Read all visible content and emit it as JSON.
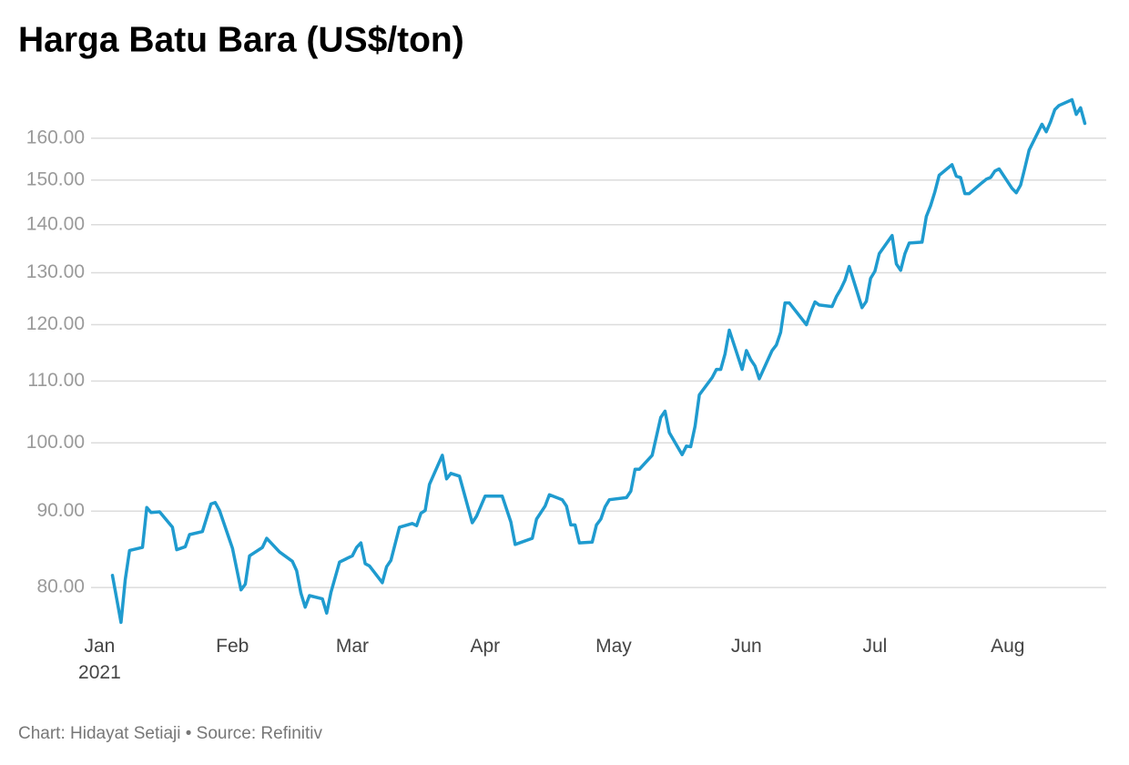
{
  "chart_data": {
    "type": "line",
    "title": "Harga Batu Bara (US$/ton)",
    "footer": "Chart: Hidayat Setiaji • Source: Refinitiv",
    "color": "#1f9bcf",
    "log_y": true,
    "grid": true,
    "x": [
      "2021-01-04",
      "2021-01-06",
      "2021-01-07",
      "2021-01-08",
      "2021-01-11",
      "2021-01-12",
      "2021-01-13",
      "2021-01-15",
      "2021-01-18",
      "2021-01-19",
      "2021-01-21",
      "2021-01-22",
      "2021-01-25",
      "2021-01-27",
      "2021-01-28",
      "2021-01-29",
      "2021-02-01",
      "2021-02-03",
      "2021-02-04",
      "2021-02-05",
      "2021-02-08",
      "2021-02-09",
      "2021-02-10",
      "2021-02-12",
      "2021-02-15",
      "2021-02-16",
      "2021-02-17",
      "2021-02-18",
      "2021-02-19",
      "2021-02-22",
      "2021-02-23",
      "2021-02-24",
      "2021-02-26",
      "2021-03-01",
      "2021-03-02",
      "2021-03-03",
      "2021-03-04",
      "2021-03-05",
      "2021-03-08",
      "2021-03-09",
      "2021-03-10",
      "2021-03-12",
      "2021-03-15",
      "2021-03-16",
      "2021-03-17",
      "2021-03-18",
      "2021-03-19",
      "2021-03-22",
      "2021-03-23",
      "2021-03-24",
      "2021-03-26",
      "2021-03-29",
      "2021-03-30",
      "2021-04-01",
      "2021-04-05",
      "2021-04-07",
      "2021-04-08",
      "2021-04-12",
      "2021-04-13",
      "2021-04-15",
      "2021-04-16",
      "2021-04-19",
      "2021-04-20",
      "2021-04-21",
      "2021-04-22",
      "2021-04-23",
      "2021-04-26",
      "2021-04-27",
      "2021-04-28",
      "2021-04-29",
      "2021-04-30",
      "2021-05-04",
      "2021-05-05",
      "2021-05-06",
      "2021-05-07",
      "2021-05-10",
      "2021-05-12",
      "2021-05-13",
      "2021-05-14",
      "2021-05-17",
      "2021-05-18",
      "2021-05-19",
      "2021-05-20",
      "2021-05-21",
      "2021-05-24",
      "2021-05-25",
      "2021-05-26",
      "2021-05-27",
      "2021-05-28",
      "2021-05-31",
      "2021-06-01",
      "2021-06-02",
      "2021-06-03",
      "2021-06-04",
      "2021-06-07",
      "2021-06-08",
      "2021-06-09",
      "2021-06-10",
      "2021-06-11",
      "2021-06-15",
      "2021-06-16",
      "2021-06-17",
      "2021-06-18",
      "2021-06-21",
      "2021-06-22",
      "2021-06-23",
      "2021-06-24",
      "2021-06-25",
      "2021-06-28",
      "2021-06-29",
      "2021-06-30",
      "2021-07-01",
      "2021-07-02",
      "2021-07-05",
      "2021-07-06",
      "2021-07-07",
      "2021-07-08",
      "2021-07-09",
      "2021-07-12",
      "2021-07-13",
      "2021-07-14",
      "2021-07-15",
      "2021-07-16",
      "2021-07-19",
      "2021-07-20",
      "2021-07-21",
      "2021-07-22",
      "2021-07-23",
      "2021-07-26",
      "2021-07-27",
      "2021-07-28",
      "2021-07-29",
      "2021-07-30",
      "2021-08-02",
      "2021-08-03",
      "2021-08-04",
      "2021-08-05",
      "2021-08-06",
      "2021-08-09",
      "2021-08-10",
      "2021-08-11",
      "2021-08-12",
      "2021-08-13",
      "2021-08-16",
      "2021-08-17",
      "2021-08-18",
      "2021-08-19"
    ],
    "values": [
      81.5,
      75.8,
      81.0,
      84.7,
      85.1,
      90.5,
      89.8,
      89.9,
      87.8,
      84.8,
      85.2,
      86.8,
      87.2,
      91.0,
      91.2,
      90.1,
      85.0,
      79.7,
      80.4,
      84.0,
      85.1,
      86.3,
      85.7,
      84.5,
      83.3,
      82.1,
      79.3,
      77.6,
      79.0,
      78.6,
      76.9,
      79.4,
      83.2,
      84.0,
      85.1,
      85.7,
      83.0,
      82.7,
      80.6,
      82.6,
      83.4,
      87.8,
      88.3,
      88.0,
      89.7,
      90.1,
      93.8,
      98.1,
      94.6,
      95.4,
      95.0,
      88.4,
      89.3,
      92.1,
      92.1,
      88.5,
      85.5,
      86.3,
      88.9,
      90.7,
      92.3,
      91.6,
      90.7,
      88.1,
      88.1,
      85.7,
      85.8,
      88.1,
      88.9,
      90.6,
      91.6,
      91.9,
      92.8,
      96.0,
      96.0,
      98.1,
      104.0,
      105.0,
      101.6,
      98.2,
      99.5,
      99.4,
      102.6,
      107.7,
      110.6,
      112.0,
      112.0,
      114.7,
      119.0,
      112.0,
      115.3,
      113.7,
      112.6,
      110.4,
      115.3,
      116.3,
      118.6,
      124.1,
      124.1,
      120.0,
      122.3,
      124.3,
      123.7,
      123.4,
      125.3,
      126.7,
      128.5,
      131.3,
      123.2,
      124.4,
      128.9,
      130.3,
      133.9,
      137.7,
      131.8,
      130.5,
      133.9,
      136.1,
      136.3,
      141.8,
      144.2,
      147.3,
      151.1,
      153.6,
      150.9,
      150.6,
      146.9,
      146.9,
      149.4,
      150.2,
      150.6,
      152.1,
      152.6,
      148.1,
      147.1,
      148.8,
      152.8,
      157.1,
      163.5,
      161.6,
      164.1,
      167.2,
      168.3,
      169.8,
      166.0,
      167.7,
      163.7
    ],
    "xlim": [
      "2020-12-30",
      "2021-08-24"
    ],
    "xticks": [
      {
        "value": "2021-01-01",
        "label": "Jan\n2021"
      },
      {
        "value": "2021-02-01",
        "label": "Feb"
      },
      {
        "value": "2021-03-01",
        "label": "Mar"
      },
      {
        "value": "2021-04-01",
        "label": "Apr"
      },
      {
        "value": "2021-05-01",
        "label": "May"
      },
      {
        "value": "2021-06-01",
        "label": "Jun"
      },
      {
        "value": "2021-07-01",
        "label": "Jul"
      },
      {
        "value": "2021-08-01",
        "label": "Aug"
      }
    ],
    "ylim": [
      75,
      175
    ],
    "yticks": [
      {
        "value": 80,
        "label": "80.00"
      },
      {
        "value": 90,
        "label": "90.00"
      },
      {
        "value": 100,
        "label": "100.00"
      },
      {
        "value": 110,
        "label": "110.00"
      },
      {
        "value": 120,
        "label": "120.00"
      },
      {
        "value": 130,
        "label": "130.00"
      },
      {
        "value": 140,
        "label": "140.00"
      },
      {
        "value": 150,
        "label": "150.00"
      },
      {
        "value": 160,
        "label": "160.00"
      }
    ]
  }
}
